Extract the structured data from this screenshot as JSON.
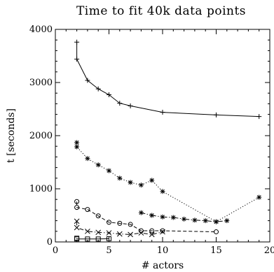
{
  "chart_data": {
    "type": "line",
    "title": "Time to fit 40k data points",
    "xlabel": "# actors",
    "ylabel": "t [seconds]",
    "xlim": [
      0,
      20
    ],
    "ylim": [
      0,
      4000
    ],
    "xticks": [
      0,
      5,
      10,
      15,
      20
    ],
    "yticks": [
      0,
      1000,
      2000,
      3000,
      4000
    ],
    "legend": "none",
    "grid": false,
    "series": [
      {
        "line": "solid",
        "marker": "plus",
        "x": [
          2,
          2,
          3,
          4,
          5,
          6,
          7,
          10,
          15,
          19
        ],
        "y": [
          3760,
          3440,
          3040,
          2880,
          2770,
          2610,
          2560,
          2440,
          2390,
          2360
        ]
      },
      {
        "line": "dotted",
        "marker": "asterisk",
        "x": [
          2,
          2,
          3,
          4,
          5,
          6,
          7,
          8,
          9,
          10,
          15,
          19
        ],
        "y": [
          1870,
          1790,
          1570,
          1450,
          1340,
          1200,
          1120,
          1070,
          1160,
          950,
          380,
          840
        ]
      },
      {
        "line": "dash-dot-dot",
        "marker": "asterisk",
        "x": [
          8,
          9,
          10,
          11,
          12,
          13,
          14,
          15,
          16
        ],
        "y": [
          550,
          500,
          470,
          460,
          430,
          410,
          400,
          380,
          400
        ]
      },
      {
        "line": "dashed",
        "marker": "circle",
        "x": [
          2,
          2,
          3,
          4,
          5,
          6,
          7,
          8,
          9,
          10,
          15
        ],
        "y": [
          760,
          650,
          610,
          490,
          370,
          350,
          330,
          210,
          210,
          210,
          190
        ]
      },
      {
        "line": "dash-dot",
        "marker": "cross",
        "x": [
          2,
          2,
          3,
          4,
          5,
          6,
          7,
          8,
          9,
          10
        ],
        "y": [
          390,
          270,
          200,
          180,
          170,
          150,
          140,
          170,
          140,
          190
        ]
      },
      {
        "line": "solid",
        "marker": "square",
        "x": [
          2,
          2,
          3,
          4,
          5
        ],
        "y": [
          70,
          55,
          55,
          55,
          60
        ]
      }
    ]
  }
}
